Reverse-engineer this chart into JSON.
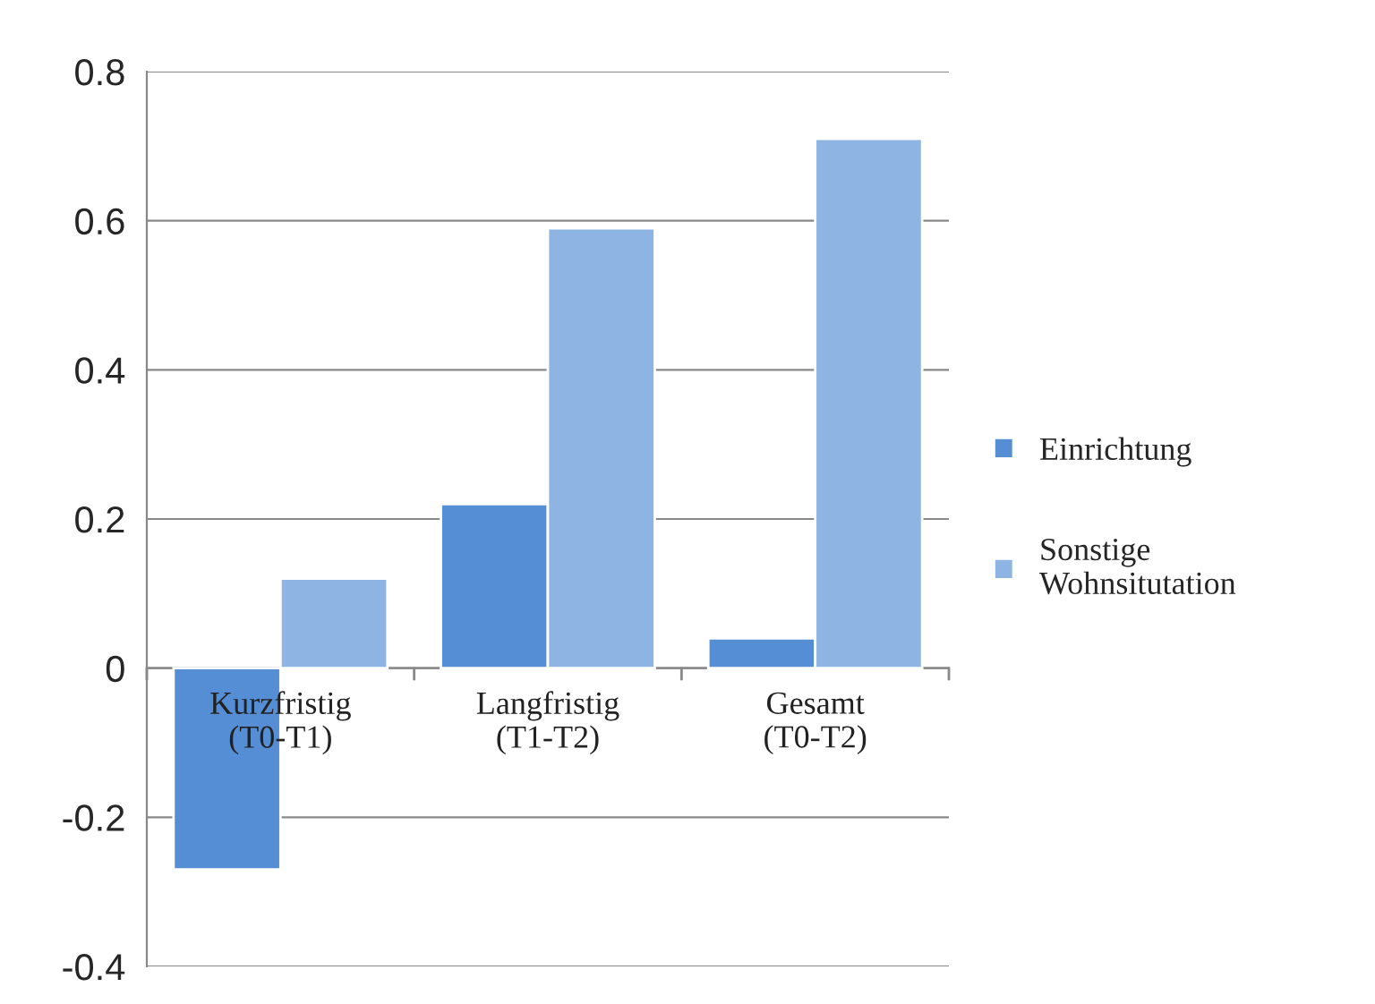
{
  "chart_data": {
    "type": "bar",
    "categories": [
      "Kurzfristig\n(T0-T1)",
      "Langfristig\n(T1-T2)",
      "Gesamt\n(T0-T2)"
    ],
    "series": [
      {
        "name": "Einrichtung",
        "color": "#558ed5",
        "values": [
          -0.27,
          0.22,
          0.04
        ]
      },
      {
        "name": "Sonstige\nWohnsitutation",
        "color": "#8eb4e3",
        "values": [
          0.12,
          0.59,
          0.71
        ]
      }
    ],
    "ylim": [
      -0.4,
      0.8
    ],
    "yticks": [
      -0.4,
      -0.2,
      0,
      0.2,
      0.4,
      0.6,
      0.8
    ],
    "grid": "y",
    "legend": "right"
  }
}
